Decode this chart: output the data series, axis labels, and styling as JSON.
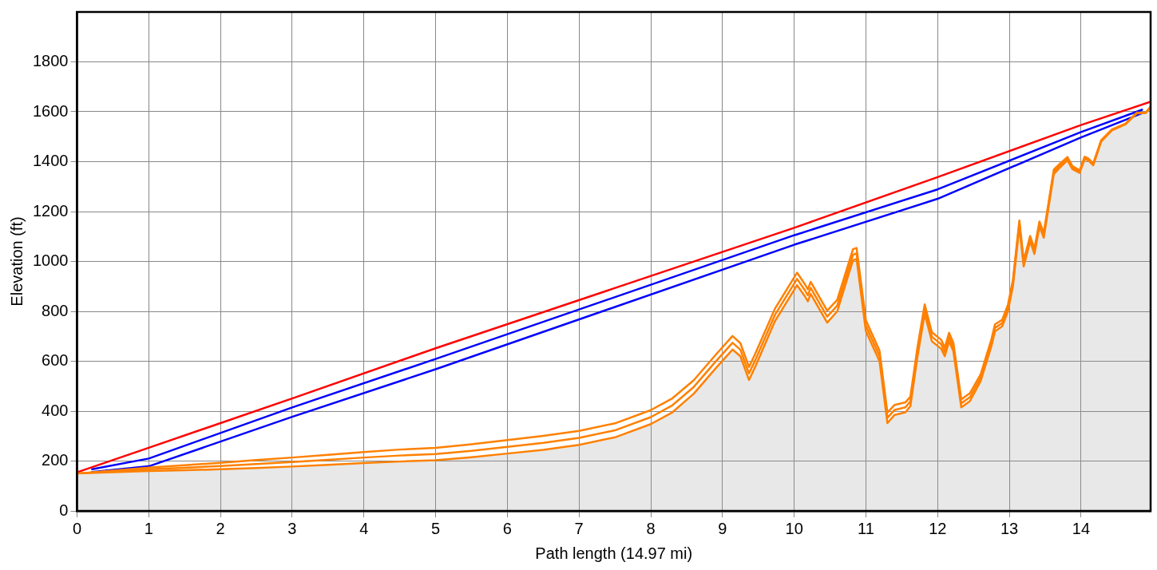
{
  "chart_data": {
    "type": "line",
    "xlabel": "Path length (14.97 mi)",
    "ylabel": "Elevation (ft)",
    "xlim": [
      0,
      14.97
    ],
    "xticks": [
      0,
      1,
      2,
      3,
      4,
      5,
      6,
      7,
      8,
      9,
      10,
      11,
      12,
      13,
      14
    ],
    "ylim": [
      0,
      2000
    ],
    "yticks": [
      0,
      200,
      400,
      600,
      800,
      1000,
      1200,
      1400,
      1600,
      1800
    ],
    "grid": true,
    "legend": false,
    "marker": "none",
    "line_style": "solid",
    "series": [
      {
        "type": "area",
        "color": "#ff8000",
        "x": [
          0,
          0.5,
          1,
          1.5,
          2,
          2.5,
          3,
          3.5,
          4,
          4.5,
          5,
          5.5,
          6,
          6.5,
          7,
          7.5,
          8,
          8.3,
          8.6,
          8.9,
          9.14,
          9.25,
          9.37,
          9.46,
          9.73,
          10.04,
          10.15,
          10.19,
          10.23,
          10.46,
          10.6,
          10.82,
          10.87,
          11,
          11.19,
          11.3,
          11.4,
          11.55,
          11.62,
          11.72,
          11.82,
          11.92,
          12.05,
          12.1,
          12.16,
          12.22,
          12.33,
          12.45,
          12.6,
          12.75,
          12.8,
          12.9,
          12.98,
          13.05,
          13.14,
          13.2,
          13.29,
          13.35,
          13.42,
          13.48,
          13.62,
          13.7,
          13.81,
          13.88,
          13.98,
          14.05,
          14.1,
          14.17,
          14.28,
          14.43,
          14.62,
          14.78,
          14.9,
          14.97
        ],
        "values": [
          150,
          155,
          160,
          163,
          167,
          172,
          178,
          185,
          192,
          198,
          203,
          215,
          230,
          245,
          265,
          295,
          348,
          395,
          470,
          570,
          647,
          620,
          525,
          580,
          760,
          905,
          860,
          840,
          870,
          755,
          800,
          1005,
          1010,
          720,
          600,
          352,
          385,
          395,
          420,
          620,
          790,
          680,
          650,
          620,
          680,
          640,
          415,
          440,
          520,
          660,
          720,
          740,
          800,
          900,
          1140,
          980,
          1080,
          1030,
          1140,
          1095,
          1350,
          1375,
          1405,
          1370,
          1355,
          1410,
          1405,
          1385,
          1480,
          1525,
          1550,
          1595,
          1595,
          1620
        ]
      },
      {
        "color": "#ff8000",
        "x": [
          0,
          0.5,
          1,
          1.5,
          2,
          2.5,
          3,
          3.5,
          4,
          4.5,
          5,
          5.5,
          6,
          6.5,
          7,
          7.5,
          8,
          8.3,
          8.6,
          8.9,
          9.14,
          9.25,
          9.37,
          9.46,
          9.73,
          10.04,
          10.15,
          10.19,
          10.23,
          10.46,
          10.6,
          10.82,
          10.87,
          11,
          11.19,
          11.3,
          11.4,
          11.55,
          11.62,
          11.72,
          11.82,
          11.92,
          12.05,
          12.1,
          12.16,
          12.22,
          12.33,
          12.45,
          12.6,
          12.75,
          12.8,
          12.9,
          12.98,
          13.05,
          13.14,
          13.2,
          13.29,
          13.35,
          13.42,
          13.48,
          13.62,
          13.7,
          13.81,
          13.88,
          13.98,
          14.05,
          14.1,
          14.17,
          14.28,
          14.43,
          14.62,
          14.78,
          14.9,
          14.97
        ],
        "values": [
          150,
          159,
          167,
          173,
          180,
          188,
          196,
          205,
          214,
          222,
          228,
          241,
          257,
          273,
          293,
          323,
          376,
          423,
          497,
          597,
          674,
          646,
          551,
          606,
          785,
          930,
          884,
          864,
          894,
          779,
          823,
          1027,
          1032,
          742,
          621,
          373,
          405,
          415,
          439,
          639,
          809,
          698,
          668,
          637,
          697,
          657,
          431,
          456,
          534,
          674,
          734,
          753,
          813,
          913,
          1152,
          992,
          1091,
          1041,
          1150,
          1105,
          1359,
          1383,
          1412,
          1376,
          1360,
          1415,
          1409,
          1389,
          1483,
          1527,
          1551,
          1596,
          1595,
          1620
        ]
      },
      {
        "color": "#ff8000",
        "x": [
          0,
          0.5,
          1,
          1.5,
          2,
          2.5,
          3,
          3.5,
          4,
          4.5,
          5,
          5.5,
          6,
          6.5,
          7,
          7.5,
          8,
          8.3,
          8.6,
          8.9,
          9.14,
          9.25,
          9.37,
          9.46,
          9.73,
          10.04,
          10.15,
          10.19,
          10.23,
          10.46,
          10.6,
          10.82,
          10.87,
          11,
          11.19,
          11.3,
          11.4,
          11.55,
          11.62,
          11.72,
          11.82,
          11.92,
          12.05,
          12.1,
          12.16,
          12.22,
          12.33,
          12.45,
          12.6,
          12.75,
          12.8,
          12.9,
          12.98,
          13.05,
          13.14,
          13.2,
          13.29,
          13.35,
          13.42,
          13.48,
          13.62,
          13.7,
          13.81,
          13.88,
          13.98,
          14.05,
          14.1,
          14.17,
          14.28,
          14.43,
          14.62,
          14.78,
          14.9,
          14.97
        ],
        "values": [
          150,
          162,
          174,
          183,
          193,
          204,
          214,
          225,
          236,
          246,
          253,
          267,
          284,
          301,
          321,
          351,
          404,
          451,
          524,
          624,
          701,
          672,
          577,
          632,
          810,
          955,
          908,
          888,
          918,
          803,
          846,
          1049,
          1054,
          764,
          642,
          394,
          425,
          435,
          458,
          658,
          828,
          716,
          686,
          654,
          714,
          674,
          447,
          472,
          548,
          688,
          748,
          766,
          826,
          926,
          1164,
          1004,
          1102,
          1052,
          1160,
          1115,
          1368,
          1391,
          1419,
          1382,
          1365,
          1420,
          1413,
          1393,
          1486,
          1529,
          1552,
          1597,
          1595,
          1620
        ]
      },
      {
        "color": "#ff0000",
        "x": [
          0,
          1,
          3,
          5,
          10,
          12,
          14,
          14.97
        ],
        "values": [
          155,
          253,
          451,
          652,
          1135,
          1338,
          1547,
          1640
        ]
      },
      {
        "color": "#0000ff",
        "x": [
          0.21,
          1,
          3,
          5,
          10,
          12,
          14,
          14.85
        ],
        "values": [
          167,
          210,
          415,
          609,
          1105,
          1289,
          1519,
          1608
        ]
      },
      {
        "color": "#0000ff",
        "x": [
          0.21,
          1,
          3,
          5,
          10,
          12,
          14,
          14.85
        ],
        "values": [
          156,
          179,
          377,
          568,
          1067,
          1251,
          1497,
          1594
        ]
      }
    ]
  }
}
